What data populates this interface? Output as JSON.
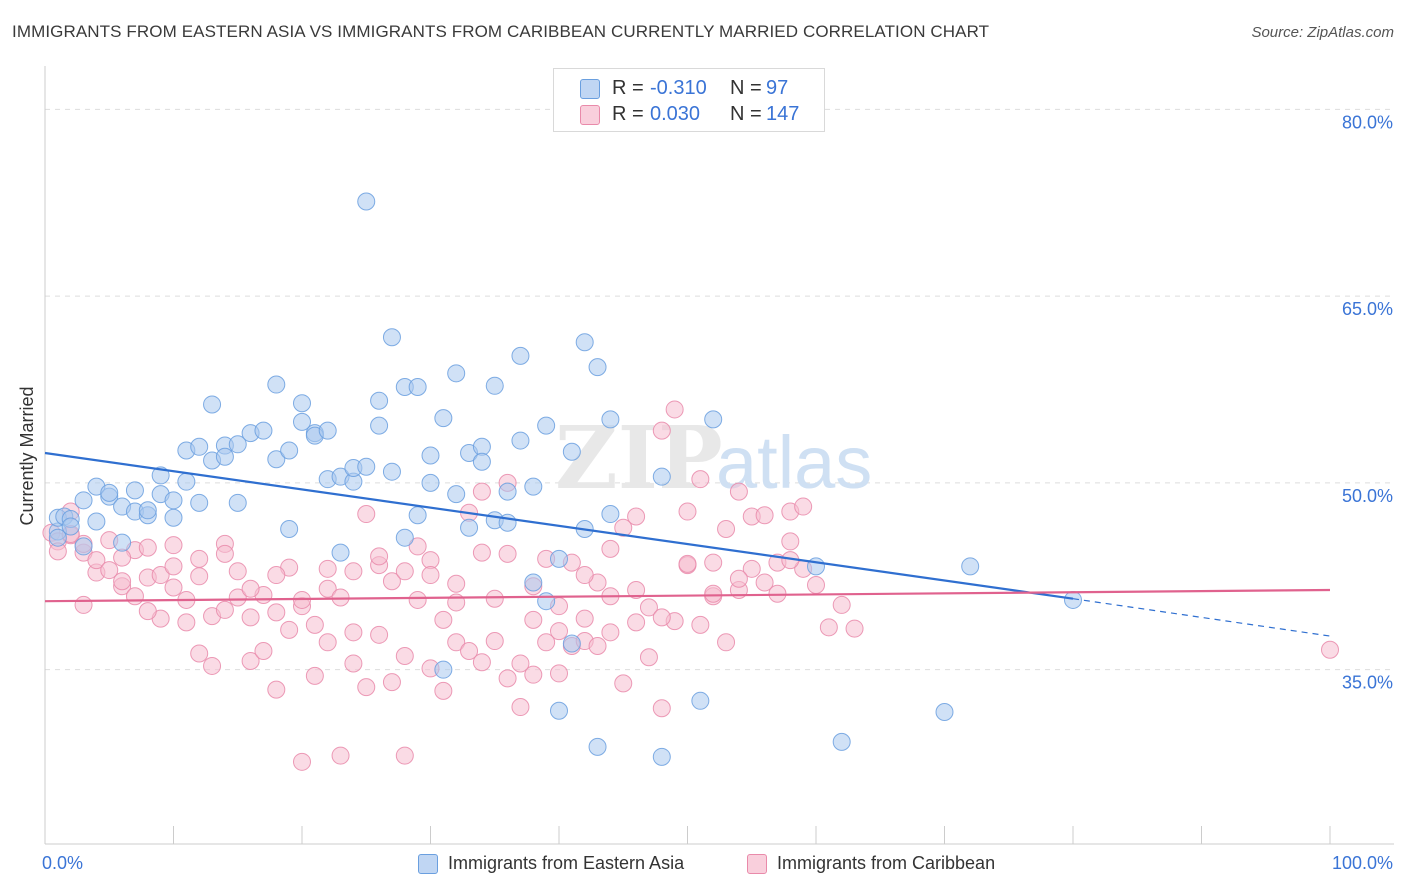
{
  "title": "IMMIGRANTS FROM EASTERN ASIA VS IMMIGRANTS FROM CARIBBEAN CURRENTLY MARRIED CORRELATION CHART",
  "source": "Source: ZipAtlas.com",
  "watermark": {
    "zip": "ZIP",
    "atlas": "atlas"
  },
  "colors": {
    "blue_fill": "#a9c8ef",
    "blue_stroke": "#6a9fdf",
    "blue_line": "#2f6fd0",
    "pink_fill": "#f6bdd0",
    "pink_stroke": "#e98aaa",
    "pink_line": "#e0628e",
    "tick_label": "#3a74d6",
    "grid": "#dddddd"
  },
  "legend_top": [
    {
      "r_label": "R =",
      "r_value": "-0.310",
      "n_label": "N =",
      "n_value": "97",
      "color": "blue"
    },
    {
      "r_label": "R =",
      "r_value": "0.030",
      "n_label": "N =",
      "n_value": "147",
      "color": "pink"
    }
  ],
  "legend_bottom": [
    {
      "label": "Immigrants from Eastern Asia",
      "color": "blue"
    },
    {
      "label": "Immigrants from Caribbean",
      "color": "pink"
    }
  ],
  "chart_data": {
    "type": "scatter",
    "ylabel": "Currently Married",
    "xlim": [
      0,
      100
    ],
    "ylim": [
      21,
      83
    ],
    "x_tick_labels": [
      {
        "value": 0,
        "label": "0.0%"
      },
      {
        "value": 100,
        "label": "100.0%"
      }
    ],
    "y_tick_labels": [
      {
        "value": 35,
        "label": "35.0%"
      },
      {
        "value": 50,
        "label": "50.0%"
      },
      {
        "value": 65,
        "label": "65.0%"
      },
      {
        "value": 80,
        "label": "80.0%"
      }
    ],
    "grid": "horizontal dashed",
    "series": [
      {
        "name": "Immigrants from Eastern Asia",
        "color": "blue",
        "trend": {
          "x_start": 0,
          "y_start": 52.4,
          "x_solid_end": 80,
          "y_solid_end": 40.7,
          "x_end": 100,
          "y_end": 37.7
        },
        "points": [
          [
            1,
            46.1
          ],
          [
            1,
            45.6
          ],
          [
            1,
            47.2
          ],
          [
            1.5,
            47.3
          ],
          [
            2,
            47.1
          ],
          [
            2,
            46.5
          ],
          [
            3,
            48.6
          ],
          [
            3,
            44.9
          ],
          [
            4,
            49.7
          ],
          [
            4,
            46.9
          ],
          [
            5,
            48.9
          ],
          [
            5,
            49.2
          ],
          [
            6,
            48.1
          ],
          [
            6,
            45.2
          ],
          [
            7,
            49.4
          ],
          [
            7,
            47.7
          ],
          [
            8,
            47.4
          ],
          [
            8,
            47.8
          ],
          [
            9,
            49.1
          ],
          [
            9,
            50.6
          ],
          [
            10,
            47.2
          ],
          [
            10,
            48.6
          ],
          [
            11,
            52.6
          ],
          [
            11,
            50.1
          ],
          [
            12,
            52.9
          ],
          [
            12,
            48.4
          ],
          [
            13,
            56.3
          ],
          [
            13,
            51.8
          ],
          [
            14,
            53.0
          ],
          [
            14,
            52.1
          ],
          [
            15,
            48.4
          ],
          [
            15,
            53.1
          ],
          [
            16,
            54.0
          ],
          [
            17,
            54.2
          ],
          [
            18,
            51.9
          ],
          [
            18,
            57.9
          ],
          [
            19,
            52.6
          ],
          [
            19,
            46.3
          ],
          [
            20,
            54.9
          ],
          [
            20,
            56.4
          ],
          [
            21,
            54.0
          ],
          [
            21,
            53.8
          ],
          [
            22,
            50.3
          ],
          [
            22,
            54.2
          ],
          [
            23,
            50.5
          ],
          [
            23,
            44.4
          ],
          [
            24,
            50.1
          ],
          [
            24,
            51.2
          ],
          [
            25,
            72.6
          ],
          [
            25,
            51.3
          ],
          [
            26,
            56.6
          ],
          [
            26,
            54.6
          ],
          [
            27,
            50.9
          ],
          [
            27,
            61.7
          ],
          [
            28,
            57.7
          ],
          [
            28,
            45.6
          ],
          [
            29,
            47.4
          ],
          [
            29,
            57.7
          ],
          [
            30,
            50.0
          ],
          [
            30,
            52.2
          ],
          [
            31,
            55.2
          ],
          [
            31,
            35.0
          ],
          [
            32,
            49.1
          ],
          [
            32,
            58.8
          ],
          [
            33,
            46.4
          ],
          [
            33,
            52.4
          ],
          [
            34,
            52.9
          ],
          [
            34,
            51.7
          ],
          [
            35,
            47.0
          ],
          [
            35,
            57.8
          ],
          [
            36,
            49.3
          ],
          [
            36,
            46.8
          ],
          [
            37,
            53.4
          ],
          [
            37,
            60.2
          ],
          [
            38,
            42.0
          ],
          [
            38,
            49.7
          ],
          [
            39,
            54.6
          ],
          [
            39,
            40.5
          ],
          [
            40,
            31.7
          ],
          [
            40,
            43.9
          ],
          [
            41,
            52.5
          ],
          [
            41,
            37.1
          ],
          [
            42,
            46.3
          ],
          [
            42,
            61.3
          ],
          [
            43,
            59.3
          ],
          [
            43,
            28.8
          ],
          [
            44,
            47.5
          ],
          [
            44,
            55.1
          ],
          [
            48,
            28.0
          ],
          [
            48,
            50.5
          ],
          [
            51,
            32.5
          ],
          [
            52,
            55.1
          ],
          [
            60,
            43.3
          ],
          [
            62,
            29.2
          ],
          [
            70,
            31.6
          ],
          [
            72,
            43.3
          ],
          [
            80,
            40.6
          ]
        ]
      },
      {
        "name": "Immigrants from Caribbean",
        "color": "pink",
        "trend": {
          "x_start": 0,
          "y_start": 40.5,
          "x_end": 100,
          "y_end": 41.4
        },
        "points": [
          [
            0.5,
            46.0
          ],
          [
            1,
            45.3
          ],
          [
            1,
            44.5
          ],
          [
            2,
            45.8
          ],
          [
            2,
            47.7
          ],
          [
            3,
            44.4
          ],
          [
            3,
            45.1
          ],
          [
            3,
            40.2
          ],
          [
            4,
            42.8
          ],
          [
            4,
            43.8
          ],
          [
            5,
            45.4
          ],
          [
            5,
            43.0
          ],
          [
            6,
            41.7
          ],
          [
            6,
            42.1
          ],
          [
            7,
            44.6
          ],
          [
            7,
            40.9
          ],
          [
            8,
            42.4
          ],
          [
            8,
            44.8
          ],
          [
            9,
            39.1
          ],
          [
            9,
            42.6
          ],
          [
            10,
            43.3
          ],
          [
            10,
            41.6
          ],
          [
            11,
            38.8
          ],
          [
            11,
            40.6
          ],
          [
            12,
            42.5
          ],
          [
            12,
            36.3
          ],
          [
            13,
            35.3
          ],
          [
            13,
            39.3
          ],
          [
            14,
            45.1
          ],
          [
            14,
            39.8
          ],
          [
            15,
            40.8
          ],
          [
            15,
            42.9
          ],
          [
            16,
            39.2
          ],
          [
            16,
            35.7
          ],
          [
            17,
            41.0
          ],
          [
            17,
            36.5
          ],
          [
            18,
            33.4
          ],
          [
            18,
            39.6
          ],
          [
            19,
            43.2
          ],
          [
            19,
            38.2
          ],
          [
            20,
            27.6
          ],
          [
            20,
            40.1
          ],
          [
            21,
            34.5
          ],
          [
            21,
            38.6
          ],
          [
            22,
            41.5
          ],
          [
            22,
            37.2
          ],
          [
            23,
            40.8
          ],
          [
            23,
            28.1
          ],
          [
            24,
            42.9
          ],
          [
            24,
            35.5
          ],
          [
            25,
            47.5
          ],
          [
            25,
            33.6
          ],
          [
            26,
            43.4
          ],
          [
            26,
            37.8
          ],
          [
            27,
            34.0
          ],
          [
            27,
            42.1
          ],
          [
            28,
            36.1
          ],
          [
            28,
            28.1
          ],
          [
            29,
            44.9
          ],
          [
            29,
            40.6
          ],
          [
            30,
            35.1
          ],
          [
            30,
            43.8
          ],
          [
            31,
            39.0
          ],
          [
            31,
            33.3
          ],
          [
            32,
            41.9
          ],
          [
            32,
            37.2
          ],
          [
            33,
            47.6
          ],
          [
            33,
            36.5
          ],
          [
            34,
            35.6
          ],
          [
            34,
            49.3
          ],
          [
            35,
            40.7
          ],
          [
            35,
            37.3
          ],
          [
            36,
            34.3
          ],
          [
            36,
            50.0
          ],
          [
            37,
            35.5
          ],
          [
            37,
            32.0
          ],
          [
            38,
            39.0
          ],
          [
            38,
            34.6
          ],
          [
            39,
            37.2
          ],
          [
            39,
            43.9
          ],
          [
            40,
            38.1
          ],
          [
            40,
            34.7
          ],
          [
            41,
            36.9
          ],
          [
            41,
            43.6
          ],
          [
            42,
            39.1
          ],
          [
            42,
            37.3
          ],
          [
            43,
            36.9
          ],
          [
            43,
            42.0
          ],
          [
            44,
            44.7
          ],
          [
            44,
            38.0
          ],
          [
            45,
            33.9
          ],
          [
            45,
            46.4
          ],
          [
            46,
            38.8
          ],
          [
            46,
            47.3
          ],
          [
            47,
            36.0
          ],
          [
            47,
            40.0
          ],
          [
            48,
            54.2
          ],
          [
            48,
            31.9
          ],
          [
            49,
            55.9
          ],
          [
            49,
            38.9
          ],
          [
            50,
            47.7
          ],
          [
            50,
            43.4
          ],
          [
            51,
            38.6
          ],
          [
            51,
            50.3
          ],
          [
            52,
            40.9
          ],
          [
            52,
            43.6
          ],
          [
            53,
            46.3
          ],
          [
            53,
            37.2
          ],
          [
            54,
            49.3
          ],
          [
            54,
            41.4
          ],
          [
            55,
            43.1
          ],
          [
            55,
            47.3
          ],
          [
            56,
            47.4
          ],
          [
            56,
            42.0
          ],
          [
            57,
            41.1
          ],
          [
            57,
            43.6
          ],
          [
            58,
            47.7
          ],
          [
            58,
            45.3
          ],
          [
            59,
            43.1
          ],
          [
            59,
            48.1
          ],
          [
            60,
            41.8
          ],
          [
            61,
            38.4
          ],
          [
            62,
            40.2
          ],
          [
            63,
            38.3
          ],
          [
            100,
            36.6
          ],
          [
            2,
            45.9
          ],
          [
            6,
            44.0
          ],
          [
            10,
            45.0
          ],
          [
            14,
            44.3
          ],
          [
            18,
            42.6
          ],
          [
            22,
            43.1
          ],
          [
            26,
            44.1
          ],
          [
            30,
            42.6
          ],
          [
            34,
            44.4
          ],
          [
            38,
            41.7
          ],
          [
            42,
            42.6
          ],
          [
            46,
            41.4
          ],
          [
            50,
            43.5
          ],
          [
            54,
            42.3
          ],
          [
            58,
            43.8
          ],
          [
            8,
            39.7
          ],
          [
            16,
            41.5
          ],
          [
            24,
            38.0
          ],
          [
            32,
            40.4
          ],
          [
            40,
            40.1
          ],
          [
            48,
            39.2
          ],
          [
            12,
            43.9
          ],
          [
            20,
            40.6
          ],
          [
            28,
            42.9
          ],
          [
            36,
            44.3
          ],
          [
            44,
            40.9
          ],
          [
            52,
            41.1
          ]
        ]
      }
    ]
  }
}
